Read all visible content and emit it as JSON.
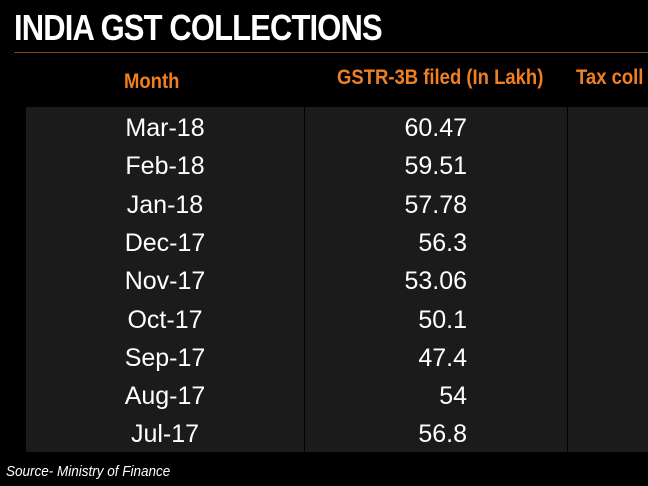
{
  "chart_data": {
    "type": "table",
    "title": "INDIA GST COLLECTIONS",
    "columns": [
      "Month",
      "GSTR-3B filed (In Lakh)",
      "Tax coll"
    ],
    "rows": [
      {
        "month": "Mar-18",
        "gstr3b_filed": "60.47"
      },
      {
        "month": "Feb-18",
        "gstr3b_filed": "59.51"
      },
      {
        "month": "Jan-18",
        "gstr3b_filed": "57.78"
      },
      {
        "month": "Dec-17",
        "gstr3b_filed": "56.3"
      },
      {
        "month": "Nov-17",
        "gstr3b_filed": "53.06"
      },
      {
        "month": "Oct-17",
        "gstr3b_filed": "50.1"
      },
      {
        "month": "Sep-17",
        "gstr3b_filed": "47.4"
      },
      {
        "month": "Aug-17",
        "gstr3b_filed": "54"
      },
      {
        "month": "Jul-17",
        "gstr3b_filed": "56.8"
      }
    ],
    "source": "Source- Ministry of Finance"
  },
  "colors": {
    "background": "#000000",
    "header_text": "#f07f22",
    "table_body": "#1b1b1b",
    "body_text": "#ffffff"
  }
}
